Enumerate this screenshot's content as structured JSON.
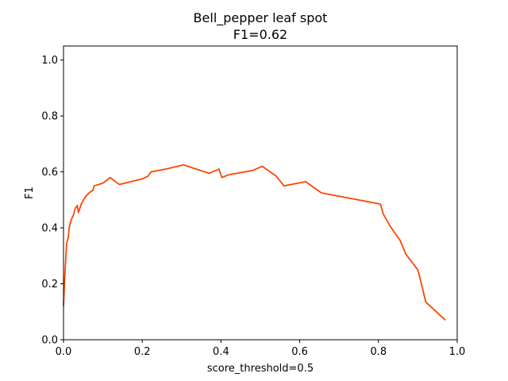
{
  "chart_data": {
    "type": "line",
    "title": "Bell_pepper leaf spot",
    "subtitle": "F1=0.62",
    "xlabel": "score_threshold=0.5",
    "ylabel": "F1",
    "xlim": [
      0.0,
      1.0
    ],
    "ylim": [
      0.0,
      1.05
    ],
    "xticks": [
      "0.0",
      "0.2",
      "0.4",
      "0.6",
      "0.8",
      "1.0"
    ],
    "yticks": [
      "0.0",
      "0.2",
      "0.4",
      "0.6",
      "0.8",
      "1.0"
    ],
    "grid": false,
    "line_color": "#ff4500",
    "series": [
      {
        "x": [
          0.0,
          0.003,
          0.008,
          0.012,
          0.015,
          0.02,
          0.025,
          0.03,
          0.035,
          0.038,
          0.045,
          0.055,
          0.065,
          0.075,
          0.078,
          0.1,
          0.11,
          0.118,
          0.142,
          0.2,
          0.215,
          0.222,
          0.26,
          0.305,
          0.37,
          0.395,
          0.402,
          0.42,
          0.48,
          0.505,
          0.54,
          0.56,
          0.615,
          0.655,
          0.805,
          0.812,
          0.83,
          0.855,
          0.87,
          0.9,
          0.91,
          0.92,
          0.97
        ],
        "y": [
          0.12,
          0.22,
          0.345,
          0.365,
          0.405,
          0.43,
          0.445,
          0.47,
          0.48,
          0.455,
          0.485,
          0.51,
          0.525,
          0.535,
          0.55,
          0.56,
          0.57,
          0.58,
          0.555,
          0.575,
          0.585,
          0.6,
          0.61,
          0.625,
          0.595,
          0.61,
          0.58,
          0.59,
          0.605,
          0.62,
          0.585,
          0.55,
          0.565,
          0.525,
          0.485,
          0.45,
          0.405,
          0.355,
          0.305,
          0.25,
          0.195,
          0.135,
          0.07
        ]
      }
    ]
  }
}
